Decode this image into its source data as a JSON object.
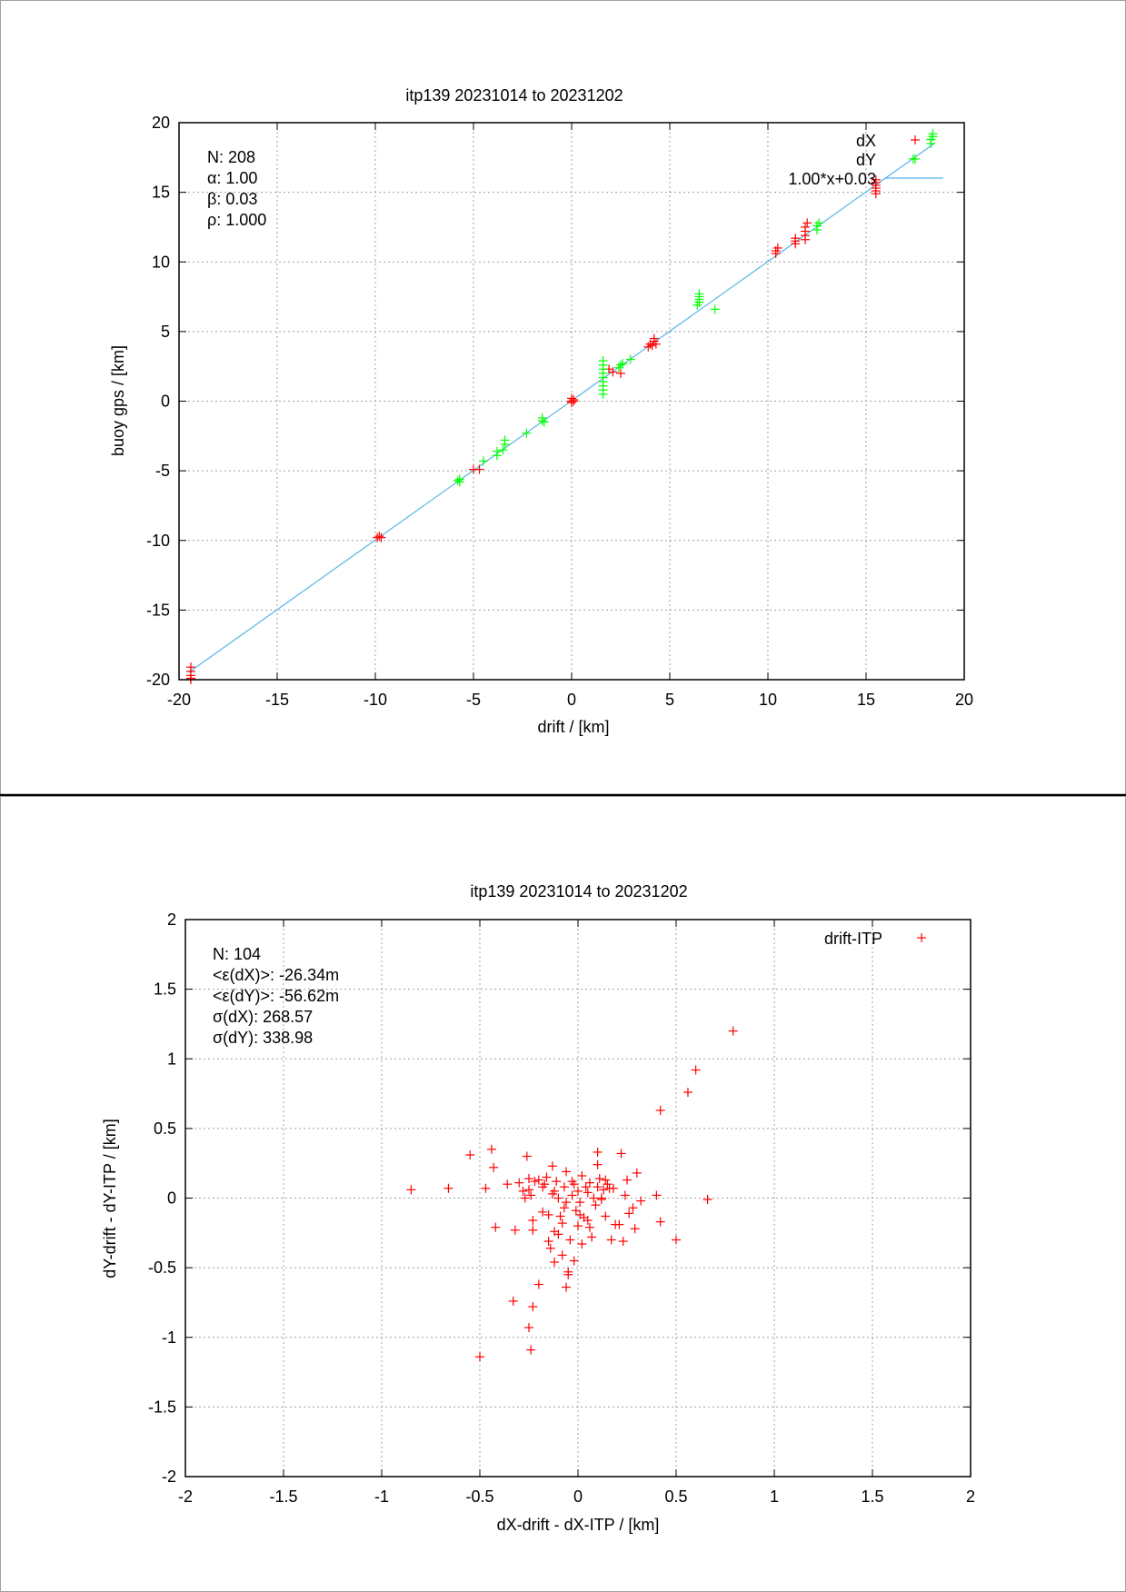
{
  "chart_data": [
    {
      "type": "scatter",
      "title": "itp139 20231014 to 20231202",
      "xlabel": "drift / [km]",
      "ylabel": "buoy gps / [km]",
      "xlim": [
        -20,
        20
      ],
      "ylim": [
        -20,
        20
      ],
      "xticks": [
        "-20",
        "-15",
        "-10",
        "-5",
        "0",
        "5",
        "10",
        "15",
        "20"
      ],
      "yticks": [
        "-20",
        "-15",
        "-10",
        "-5",
        "0",
        "5",
        "10",
        "15",
        "20"
      ],
      "grid": true,
      "legend_position": "top-right",
      "annotations": [
        "N: 208",
        "α: 1.00",
        "β: 0.03",
        "ρ: 1.000"
      ],
      "fit_line": {
        "name": "1.00*x+0.03",
        "slope": 1.0,
        "intercept": 0.03,
        "x_range": [
          -19.5,
          18.5
        ],
        "color": "#56b4e9"
      },
      "series": [
        {
          "name": "dX",
          "color": "#ff0000",
          "marker": "+",
          "points": [
            [
              -19.4,
              -19.4
            ],
            [
              -19.4,
              -19.7
            ],
            [
              -19.4,
              -19.9
            ],
            [
              -19.4,
              -20.0
            ],
            [
              -19.4,
              -19.1
            ],
            [
              -9.9,
              -9.8
            ],
            [
              -9.8,
              -9.7
            ],
            [
              -9.7,
              -9.8
            ],
            [
              -5.0,
              -4.9
            ],
            [
              -4.7,
              -4.9
            ],
            [
              0.0,
              0.0
            ],
            [
              0.0,
              0.2
            ],
            [
              0.1,
              0.1
            ],
            [
              0.0,
              -0.1
            ],
            [
              0.1,
              0.0
            ],
            [
              1.9,
              2.3
            ],
            [
              2.1,
              2.1
            ],
            [
              2.5,
              2.0
            ],
            [
              3.9,
              3.9
            ],
            [
              4.0,
              4.1
            ],
            [
              4.2,
              4.3
            ],
            [
              4.2,
              4.5
            ],
            [
              4.3,
              4.1
            ],
            [
              4.1,
              4.0
            ],
            [
              10.4,
              10.6
            ],
            [
              10.4,
              10.8
            ],
            [
              10.5,
              11.0
            ],
            [
              11.4,
              11.3
            ],
            [
              11.4,
              11.5
            ],
            [
              11.4,
              11.7
            ],
            [
              11.9,
              11.6
            ],
            [
              11.9,
              11.9
            ],
            [
              11.9,
              12.2
            ],
            [
              11.9,
              12.5
            ],
            [
              12.0,
              12.8
            ],
            [
              15.5,
              14.9
            ],
            [
              15.5,
              15.1
            ],
            [
              15.5,
              15.3
            ],
            [
              15.5,
              15.5
            ],
            [
              15.5,
              15.7
            ],
            [
              15.5,
              15.9
            ]
          ]
        },
        {
          "name": "dY",
          "color": "#00ff00",
          "marker": "+",
          "points": [
            [
              -5.8,
              -5.7
            ],
            [
              -5.7,
              -5.8
            ],
            [
              -5.7,
              -5.6
            ],
            [
              -4.5,
              -4.3
            ],
            [
              -3.8,
              -3.9
            ],
            [
              -3.8,
              -3.6
            ],
            [
              -3.5,
              -3.5
            ],
            [
              -3.4,
              -3.1
            ],
            [
              -3.4,
              -2.8
            ],
            [
              -2.3,
              -2.3
            ],
            [
              -1.5,
              -1.4
            ],
            [
              -1.5,
              -1.2
            ],
            [
              -1.4,
              -1.5
            ],
            [
              1.6,
              0.5
            ],
            [
              1.6,
              0.8
            ],
            [
              1.6,
              1.1
            ],
            [
              1.6,
              1.4
            ],
            [
              1.6,
              1.7
            ],
            [
              1.6,
              2.0
            ],
            [
              1.6,
              2.3
            ],
            [
              1.6,
              2.6
            ],
            [
              1.6,
              2.9
            ],
            [
              2.4,
              2.4
            ],
            [
              2.5,
              2.6
            ],
            [
              2.6,
              2.7
            ],
            [
              3.0,
              3.0
            ],
            [
              6.4,
              6.9
            ],
            [
              6.5,
              7.1
            ],
            [
              6.5,
              7.3
            ],
            [
              6.5,
              7.5
            ],
            [
              6.5,
              7.7
            ],
            [
              7.3,
              6.6
            ],
            [
              12.5,
              12.3
            ],
            [
              12.5,
              12.6
            ],
            [
              12.6,
              12.8
            ],
            [
              17.4,
              17.4
            ],
            [
              18.3,
              18.5
            ],
            [
              18.3,
              18.8
            ],
            [
              18.4,
              19.0
            ],
            [
              18.4,
              19.2
            ]
          ]
        }
      ]
    },
    {
      "type": "scatter",
      "title": "itp139 20231014 to 20231202",
      "xlabel": "dX-drift - dX-ITP / [km]",
      "ylabel": "dY-drift - dY-ITP / [km]",
      "xlim": [
        -2,
        2
      ],
      "ylim": [
        -2,
        2
      ],
      "xticks": [
        "-2",
        "-1.5",
        "-1",
        "-0.5",
        "0",
        "0.5",
        "1",
        "1.5",
        "2"
      ],
      "yticks": [
        "-2",
        "-1.5",
        "-1",
        "-0.5",
        "0",
        "0.5",
        "1",
        "1.5",
        "2"
      ],
      "grid": true,
      "legend_position": "top-right",
      "annotations": [
        "N: 104",
        "<ε(dX)>:  -26.34m",
        "<ε(dY)>: -56.62m",
        "σ(dX):  268.57",
        "σ(dY):  338.98"
      ],
      "series": [
        {
          "name": "drift-ITP",
          "color": "#ff0000",
          "marker": "+",
          "points": [
            [
              -0.85,
              0.06
            ],
            [
              -0.66,
              0.07
            ],
            [
              -0.55,
              0.31
            ],
            [
              -0.47,
              0.07
            ],
            [
              -0.44,
              0.35
            ],
            [
              -0.43,
              0.22
            ],
            [
              -0.42,
              -0.21
            ],
            [
              -0.36,
              0.1
            ],
            [
              -0.32,
              -0.23
            ],
            [
              -0.3,
              0.11
            ],
            [
              -0.28,
              0.05
            ],
            [
              -0.26,
              0.3
            ],
            [
              -0.25,
              0.14
            ],
            [
              -0.25,
              0.06
            ],
            [
              -0.24,
              0.02
            ],
            [
              -0.23,
              -0.16
            ],
            [
              -0.23,
              -0.23
            ],
            [
              -0.2,
              0.13
            ],
            [
              -0.18,
              0.08
            ],
            [
              -0.17,
              0.1
            ],
            [
              -0.16,
              0.15
            ],
            [
              -0.15,
              -0.12
            ],
            [
              -0.15,
              -0.31
            ],
            [
              -0.14,
              -0.36
            ],
            [
              -0.13,
              0.23
            ],
            [
              -0.13,
              0.03
            ],
            [
              -0.12,
              -0.24
            ],
            [
              -0.12,
              -0.46
            ],
            [
              -0.11,
              0.12
            ],
            [
              -0.1,
              -0.26
            ],
            [
              -0.09,
              -0.13
            ],
            [
              -0.08,
              -0.41
            ],
            [
              -0.07,
              0.08
            ],
            [
              -0.07,
              -0.07
            ],
            [
              -0.06,
              0.19
            ],
            [
              -0.06,
              -0.03
            ],
            [
              -0.05,
              -0.53
            ],
            [
              -0.05,
              -0.55
            ],
            [
              -0.04,
              -0.3
            ],
            [
              -0.03,
              0.02
            ],
            [
              -0.02,
              0.1
            ],
            [
              -0.02,
              -0.45
            ],
            [
              -0.01,
              -0.09
            ],
            [
              0.0,
              0.05
            ],
            [
              0.01,
              -0.03
            ],
            [
              0.01,
              -0.12
            ],
            [
              0.02,
              0.16
            ],
            [
              0.02,
              -0.33
            ],
            [
              0.03,
              -0.14
            ],
            [
              0.04,
              0.08
            ],
            [
              0.05,
              -0.16
            ],
            [
              0.06,
              -0.21
            ],
            [
              0.07,
              -0.28
            ],
            [
              0.08,
              0.0
            ],
            [
              0.09,
              -0.05
            ],
            [
              0.1,
              0.33
            ],
            [
              0.1,
              0.24
            ],
            [
              0.1,
              0.08
            ],
            [
              0.11,
              0.14
            ],
            [
              0.12,
              -0.01
            ],
            [
              0.13,
              0.06
            ],
            [
              0.14,
              -0.13
            ],
            [
              0.15,
              0.1
            ],
            [
              0.16,
              0.07
            ],
            [
              0.17,
              -0.3
            ],
            [
              0.18,
              0.07
            ],
            [
              0.19,
              -0.19
            ],
            [
              0.21,
              -0.19
            ],
            [
              0.22,
              0.32
            ],
            [
              0.23,
              -0.31
            ],
            [
              0.25,
              0.13
            ],
            [
              0.26,
              -0.11
            ],
            [
              0.28,
              -0.07
            ],
            [
              0.29,
              -0.22
            ],
            [
              0.3,
              0.18
            ],
            [
              0.32,
              -0.02
            ],
            [
              0.4,
              0.02
            ],
            [
              0.42,
              -0.17
            ],
            [
              0.5,
              -0.3
            ],
            [
              0.66,
              -0.01
            ],
            [
              0.42,
              0.63
            ],
            [
              0.56,
              0.76
            ],
            [
              0.6,
              0.92
            ],
            [
              0.79,
              1.2
            ],
            [
              -0.5,
              -1.14
            ],
            [
              -0.24,
              -1.09
            ],
            [
              -0.25,
              -0.93
            ],
            [
              -0.23,
              -0.78
            ],
            [
              -0.33,
              -0.74
            ],
            [
              -0.2,
              -0.62
            ],
            [
              -0.06,
              -0.64
            ],
            [
              -0.18,
              -0.1
            ],
            [
              -0.1,
              0.0
            ],
            [
              0.0,
              -0.2
            ],
            [
              0.05,
              0.04
            ],
            [
              -0.03,
              0.12
            ],
            [
              0.12,
              0.0
            ],
            [
              -0.27,
              0.0
            ],
            [
              -0.22,
              0.12
            ],
            [
              0.14,
              0.13
            ],
            [
              -0.12,
              0.05
            ],
            [
              0.24,
              0.02
            ],
            [
              -0.08,
              -0.18
            ],
            [
              0.06,
              0.11
            ]
          ]
        }
      ]
    }
  ]
}
